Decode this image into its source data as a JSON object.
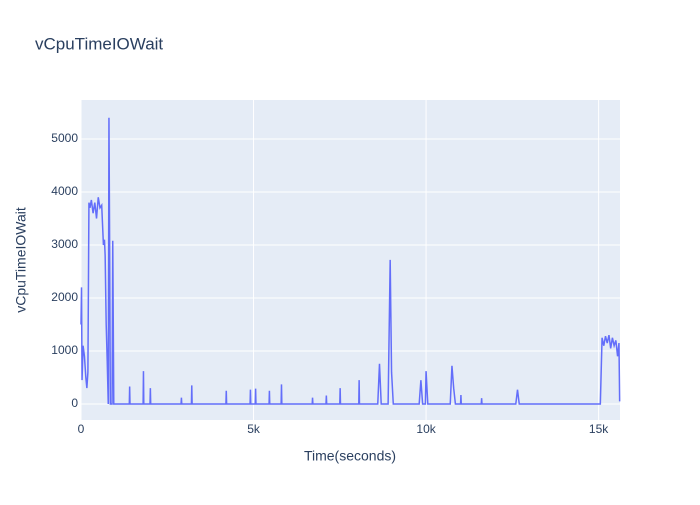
{
  "chart_data": {
    "type": "line",
    "title": "vCpuTimeIOWait",
    "x_label": "Time(seconds)",
    "y_label": "vCpuTimeIOWait",
    "color": "#636efa",
    "grid": true,
    "x": [
      0,
      15,
      30,
      60,
      100,
      140,
      170,
      200,
      230,
      260,
      300,
      350,
      400,
      450,
      500,
      550,
      600,
      650,
      680,
      700,
      730,
      760,
      790,
      810,
      830,
      850,
      900,
      920,
      950,
      1400,
      1410,
      1420,
      1800,
      1810,
      1820,
      2000,
      2010,
      2020,
      2900,
      2910,
      2920,
      3200,
      3210,
      3220,
      4200,
      4210,
      4220,
      4900,
      4910,
      4920,
      5050,
      5060,
      5070,
      5450,
      5460,
      5470,
      5800,
      5810,
      5820,
      6700,
      6710,
      6720,
      7100,
      7110,
      7120,
      7500,
      7510,
      7520,
      8050,
      8060,
      8070,
      8600,
      8650,
      8700,
      8900,
      8960,
      9000,
      9050,
      9800,
      9850,
      9900,
      9980,
      10000,
      10050,
      10700,
      10750,
      10800,
      10850,
      11000,
      11010,
      11020,
      11600,
      11610,
      11620,
      12600,
      12650,
      12700,
      15050,
      15100,
      15150,
      15200,
      15250,
      15300,
      15350,
      15400,
      15450,
      15500,
      15550,
      15590,
      15610
    ],
    "values": [
      1500,
      2200,
      450,
      1100,
      900,
      500,
      300,
      600,
      3800,
      3700,
      3850,
      3600,
      3800,
      3500,
      3900,
      3700,
      3750,
      3000,
      3100,
      2800,
      1500,
      800,
      0,
      5400,
      3000,
      0,
      0,
      3080,
      0,
      0,
      330,
      0,
      0,
      620,
      0,
      0,
      300,
      0,
      0,
      120,
      0,
      0,
      350,
      0,
      0,
      250,
      0,
      0,
      270,
      0,
      0,
      290,
      0,
      0,
      250,
      0,
      0,
      370,
      0,
      0,
      120,
      0,
      0,
      160,
      0,
      0,
      300,
      0,
      0,
      450,
      0,
      0,
      760,
      0,
      0,
      2720,
      600,
      0,
      0,
      450,
      0,
      0,
      620,
      0,
      0,
      720,
      300,
      0,
      0,
      170,
      0,
      0,
      110,
      0,
      0,
      270,
      0,
      0,
      1250,
      1100,
      1280,
      1150,
      1300,
      1050,
      1250,
      1100,
      1200,
      900,
      1150,
      50
    ],
    "xlim": [
      0,
      15620
    ],
    "ylim": [
      -302,
      5736
    ],
    "xticks": [
      0,
      {
        "value": 5000,
        "label": "5k"
      },
      {
        "value": 10000,
        "label": "10k"
      },
      {
        "value": 15000,
        "label": "15k"
      }
    ],
    "yticks": [
      0,
      1000,
      2000,
      3000,
      4000,
      5000
    ]
  }
}
